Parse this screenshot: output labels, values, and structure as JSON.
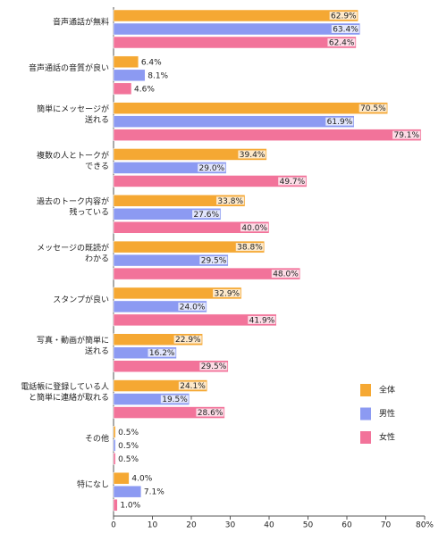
{
  "chart_data": {
    "type": "hbar",
    "categories": [
      [
        "音声通話が無料"
      ],
      [
        "音声通話の音質が良い"
      ],
      [
        "簡単にメッセージが",
        "送れる"
      ],
      [
        "複数の人とトークが",
        "できる"
      ],
      [
        "過去のトーク内容が",
        "残っている"
      ],
      [
        "メッセージの既読が",
        "わかる"
      ],
      [
        "スタンプが良い"
      ],
      [
        "写真・動画が簡単に",
        "送れる"
      ],
      [
        "電話帳に登録している人",
        "と簡単に連絡が取れる"
      ],
      [
        "その他"
      ],
      [
        "特になし"
      ]
    ],
    "series": [
      {
        "name": "全体",
        "color": "#f5a833",
        "values": [
          62.9,
          6.4,
          70.5,
          39.4,
          33.8,
          38.8,
          32.9,
          22.9,
          24.1,
          0.5,
          4
        ],
        "value_labels": [
          "62.9%",
          "6.4%",
          "70.5%",
          "39.4%",
          "33.8%",
          "38.8%",
          "32.9%",
          "22.9%",
          "24.1%",
          "0.5%",
          "4.0%"
        ]
      },
      {
        "name": "男性",
        "color": "#8c9af2",
        "values": [
          63.4,
          8.1,
          61.9,
          29,
          27.6,
          29.5,
          24,
          16.2,
          19.5,
          0.5,
          7.1
        ],
        "value_labels": [
          "63.4%",
          "8.1%",
          "61.9%",
          "29.0%",
          "27.6%",
          "29.5%",
          "24.0%",
          "16.2%",
          "19.5%",
          "0.5%",
          "7.1%"
        ]
      },
      {
        "name": "女性",
        "color": "#f2739a",
        "values": [
          62.4,
          4.6,
          79.1,
          49.7,
          40,
          48,
          41.9,
          29.5,
          28.6,
          0.5,
          1
        ],
        "value_labels": [
          "62.4%",
          "4.6%",
          "79.1%",
          "49.7%",
          "40.0%",
          "48.0%",
          "41.9%",
          "29.5%",
          "28.6%",
          "0.5%",
          "1.0%"
        ]
      }
    ],
    "xlim": [
      0,
      80
    ],
    "xticks": [
      0,
      10,
      20,
      30,
      40,
      50,
      60,
      70,
      {
        "value": 80,
        "label": "80%"
      }
    ],
    "legend": "lower-right"
  }
}
